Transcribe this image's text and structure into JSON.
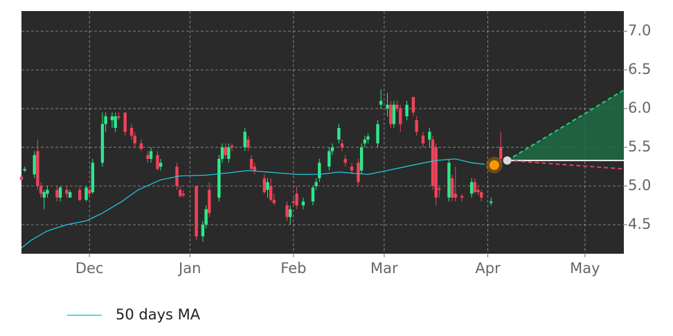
{
  "chart_data": {
    "type": "candlestick",
    "xlim": [
      0,
      186
    ],
    "xticks": [
      {
        "value": 21,
        "label": "Dec"
      },
      {
        "value": 52,
        "label": "Jan"
      },
      {
        "value": 84,
        "label": "Feb"
      },
      {
        "value": 112,
        "label": "Mar"
      },
      {
        "value": 144,
        "label": "Apr"
      },
      {
        "value": 174,
        "label": "May"
      }
    ],
    "ylim": [
      4.125,
      7.26
    ],
    "yticks": [
      {
        "value": 4.5,
        "label": "4.5"
      },
      {
        "value": 5,
        "label": "5.0"
      },
      {
        "value": 5.5,
        "label": "5.5"
      },
      {
        "value": 6,
        "label": "6.0"
      },
      {
        "value": 6.5,
        "label": "6.5"
      },
      {
        "value": 7,
        "label": "7.0"
      }
    ],
    "grid": true,
    "up_color": "#2ee88a",
    "down_color": "#f0435a",
    "x": [
      0,
      1,
      4,
      5,
      6,
      7,
      8,
      11,
      12,
      14,
      15,
      18,
      20,
      21,
      22,
      25,
      26,
      28,
      29,
      30,
      32,
      34,
      35,
      37,
      39,
      40,
      42,
      43,
      48,
      49,
      50,
      54,
      56,
      57,
      58,
      61,
      62,
      63,
      64,
      65,
      69,
      70,
      71,
      72,
      75,
      76,
      77,
      78,
      82,
      83,
      84,
      85,
      87,
      90,
      91,
      92,
      95,
      96,
      98,
      99,
      100,
      102,
      104,
      105,
      106,
      107,
      110,
      111,
      113,
      114,
      115,
      116,
      117,
      119,
      121,
      122,
      124,
      126,
      127,
      128,
      129,
      132,
      133,
      134,
      136,
      139,
      140,
      141,
      142,
      145,
      148
    ],
    "open": [
      5.12,
      5.2,
      5.15,
      5.45,
      5.0,
      4.85,
      4.9,
      4.95,
      4.85,
      4.95,
      4.85,
      4.95,
      4.82,
      4.95,
      4.92,
      5.3,
      5.8,
      5.85,
      5.75,
      5.9,
      5.95,
      5.75,
      5.65,
      5.55,
      5.4,
      5.35,
      5.4,
      5.25,
      5.25,
      4.95,
      4.9,
      5.0,
      4.35,
      4.5,
      4.95,
      4.85,
      5.35,
      5.5,
      5.35,
      5.52,
      5.5,
      5.6,
      5.35,
      5.25,
      5.1,
      4.95,
      5.0,
      4.82,
      4.75,
      4.6,
      4.8,
      4.9,
      4.75,
      4.8,
      5.0,
      5.1,
      5.25,
      5.45,
      5.6,
      5.55,
      5.35,
      5.25,
      5.3,
      5.2,
      5.55,
      5.6,
      5.55,
      6.05,
      6.0,
      6.05,
      5.8,
      6.05,
      6.0,
      5.9,
      6.15,
      5.85,
      5.65,
      5.6,
      5.6,
      5.5,
      4.97,
      4.85,
      5.1,
      4.9,
      4.87,
      4.9,
      5.05,
      4.95,
      4.92,
      4.78,
      5.5
    ],
    "high": [
      5.15,
      5.25,
      5.45,
      5.6,
      5.05,
      4.95,
      5.0,
      5.0,
      5.0,
      5.0,
      4.95,
      5.0,
      5.0,
      5.0,
      5.35,
      5.95,
      5.95,
      5.95,
      5.95,
      5.95,
      5.95,
      5.8,
      5.7,
      5.6,
      5.45,
      5.5,
      5.45,
      5.35,
      5.3,
      5.0,
      4.95,
      5.0,
      4.55,
      4.75,
      5.05,
      5.4,
      5.55,
      5.55,
      5.55,
      5.55,
      5.75,
      5.65,
      5.4,
      5.3,
      5.15,
      5.1,
      5.1,
      4.9,
      4.8,
      4.75,
      4.85,
      5.0,
      4.85,
      5.0,
      5.1,
      5.35,
      5.5,
      5.55,
      5.8,
      5.6,
      5.4,
      5.3,
      5.35,
      5.55,
      5.65,
      5.68,
      5.85,
      6.25,
      6.2,
      6.1,
      6.1,
      6.1,
      6.05,
      6.1,
      6.15,
      5.9,
      5.7,
      5.75,
      5.65,
      5.55,
      5.0,
      5.35,
      5.15,
      5.25,
      4.9,
      5.1,
      5.1,
      5.0,
      4.95,
      4.85,
      5.7
    ],
    "low": [
      5.05,
      5.18,
      5.1,
      4.95,
      4.85,
      4.7,
      4.85,
      4.8,
      4.8,
      4.85,
      4.85,
      4.8,
      4.8,
      4.85,
      4.9,
      5.25,
      5.7,
      5.75,
      5.7,
      5.85,
      5.65,
      5.6,
      5.5,
      5.45,
      5.3,
      5.3,
      5.2,
      5.2,
      4.95,
      4.85,
      4.85,
      4.3,
      4.28,
      4.45,
      4.6,
      4.8,
      5.3,
      5.35,
      5.3,
      5.45,
      5.45,
      5.45,
      5.2,
      5.15,
      4.9,
      4.85,
      4.8,
      4.75,
      4.55,
      4.5,
      4.75,
      4.7,
      4.7,
      4.75,
      4.95,
      5.05,
      5.2,
      5.4,
      5.55,
      5.45,
      5.25,
      5.15,
      5.0,
      5.15,
      5.5,
      5.55,
      5.5,
      6.0,
      5.9,
      5.75,
      5.75,
      5.95,
      5.7,
      5.85,
      5.9,
      5.65,
      5.5,
      5.5,
      4.95,
      4.75,
      4.85,
      4.8,
      4.8,
      4.8,
      4.8,
      4.85,
      4.9,
      4.88,
      4.8,
      4.75,
      5.3
    ],
    "close": [
      5.08,
      5.22,
      5.4,
      5.0,
      4.9,
      4.92,
      4.95,
      4.85,
      4.98,
      4.9,
      4.92,
      4.82,
      4.98,
      4.9,
      5.3,
      5.8,
      5.9,
      5.9,
      5.9,
      5.88,
      5.7,
      5.65,
      5.55,
      5.48,
      5.35,
      5.45,
      5.22,
      5.3,
      5.0,
      4.87,
      4.88,
      4.35,
      4.5,
      4.7,
      4.65,
      5.35,
      5.5,
      5.4,
      5.5,
      5.5,
      5.7,
      5.5,
      5.22,
      5.2,
      4.92,
      5.05,
      4.82,
      4.78,
      4.6,
      4.7,
      4.78,
      4.75,
      4.8,
      4.98,
      5.05,
      5.3,
      5.45,
      5.5,
      5.75,
      5.5,
      5.3,
      5.2,
      5.05,
      5.5,
      5.6,
      5.64,
      5.8,
      6.1,
      6.05,
      5.8,
      6.05,
      6.0,
      5.8,
      6.05,
      5.95,
      5.7,
      5.55,
      5.7,
      5.0,
      4.85,
      4.95,
      5.3,
      4.85,
      4.85,
      4.85,
      5.05,
      4.92,
      4.92,
      4.85,
      4.8,
      5.35
    ],
    "ma": {
      "name": "50 days MA",
      "color": "#1ec8e0",
      "x": [
        0,
        3,
        8,
        14,
        20,
        25,
        31,
        36,
        43,
        49,
        57,
        64,
        70,
        79,
        85,
        92,
        98,
        107,
        113,
        122,
        128,
        134,
        139,
        143
      ],
      "values": [
        4.2,
        4.3,
        4.42,
        4.5,
        4.55,
        4.65,
        4.8,
        4.95,
        5.08,
        5.13,
        5.14,
        5.17,
        5.2,
        5.17,
        5.15,
        5.15,
        5.18,
        5.15,
        5.2,
        5.28,
        5.33,
        5.35,
        5.3,
        5.28
      ]
    },
    "forecast": {
      "x": [
        150,
        186
      ],
      "upper": [
        5.33,
        6.24
      ],
      "middle": [
        5.33,
        5.33
      ],
      "lower": [
        5.33,
        5.22
      ],
      "upper_color": "#22d07a",
      "lower_color": "#e8405a",
      "fill_color": "#1e6b45"
    },
    "last_price": {
      "x": 146,
      "value": 5.27,
      "color": "#ff9800"
    },
    "forecast_start": {
      "x": 150,
      "value": 5.33,
      "color": "#d8d8d8"
    }
  }
}
